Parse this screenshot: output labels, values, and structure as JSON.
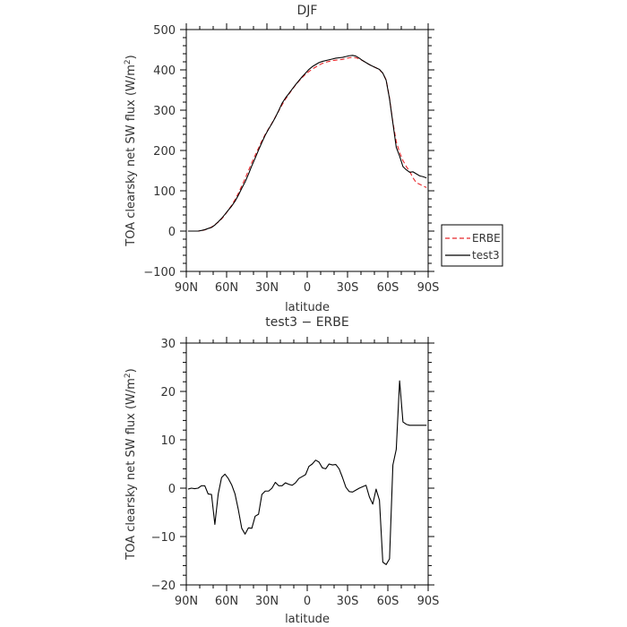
{
  "chart_data": [
    {
      "type": "line",
      "title": "DJF",
      "xlabel": "latitude",
      "ylabel": "TOA clearsky net SW flux (W/m",
      "ylabel_sup": "2",
      "ylabel_tail": ")",
      "xlim": [
        90,
        -90
      ],
      "ylim": [
        -100,
        500
      ],
      "xticks": [
        90,
        60,
        30,
        0,
        -30,
        -60,
        -90
      ],
      "xtick_labels": [
        "90N",
        "60N",
        "30N",
        "0",
        "30S",
        "60S",
        "90S"
      ],
      "yticks": [
        -100,
        0,
        100,
        200,
        300,
        400,
        500
      ],
      "ytick_labels": [
        "−100",
        "0",
        "100",
        "200",
        "300",
        "400",
        "500"
      ],
      "legend_position": "right",
      "series": [
        {
          "name": "ERBE",
          "color": "#e8282b",
          "dash": "dashed",
          "x": [
            88.75,
            86.25,
            83.75,
            81.25,
            78.75,
            76.25,
            73.75,
            71.25,
            68.75,
            66.25,
            63.75,
            61.25,
            58.75,
            56.25,
            53.75,
            51.25,
            48.75,
            46.25,
            43.75,
            41.25,
            38.75,
            36.25,
            33.75,
            31.25,
            28.75,
            26.25,
            23.75,
            21.25,
            18.75,
            16.25,
            13.75,
            11.25,
            8.75,
            6.25,
            3.75,
            1.25,
            -1.25,
            -3.75,
            -6.25,
            -8.75,
            -11.25,
            -13.75,
            -16.25,
            -18.75,
            -21.25,
            -23.75,
            -26.25,
            -28.75,
            -31.25,
            -33.75,
            -36.25,
            -38.75,
            -41.25,
            -43.75,
            -46.25,
            -48.75,
            -51.25,
            -53.75,
            -56.25,
            -58.75,
            -61.25,
            -63.75,
            -66.25,
            -68.75,
            -71.25,
            -73.75,
            -76.25,
            -78.75,
            -81.25,
            -83.75,
            -86.25,
            -88.75
          ],
          "y": [
            0,
            0,
            0,
            0,
            1,
            3,
            6,
            10,
            16,
            22,
            30,
            40,
            52,
            64,
            78,
            94,
            112,
            130,
            150,
            170,
            188,
            206,
            224,
            240,
            254,
            268,
            283,
            298,
            313,
            327,
            339,
            351,
            362,
            372,
            381,
            389,
            396,
            402,
            407,
            412,
            416,
            419,
            421,
            423,
            424,
            425,
            426,
            428,
            430,
            431,
            430,
            427,
            423,
            418,
            413,
            409,
            405,
            400,
            392,
            375,
            330,
            270,
            222,
            195,
            175,
            160,
            148,
            132,
            120,
            116,
            112,
            108
          ]
        },
        {
          "name": "test3",
          "color": "#000000",
          "dash": "solid",
          "x": [
            88.75,
            86.25,
            83.75,
            81.25,
            78.75,
            76.25,
            73.75,
            71.25,
            68.75,
            66.25,
            63.75,
            61.25,
            58.75,
            56.25,
            53.75,
            51.25,
            48.75,
            46.25,
            43.75,
            41.25,
            38.75,
            36.25,
            33.75,
            31.25,
            28.75,
            26.25,
            23.75,
            21.25,
            18.75,
            16.25,
            13.75,
            11.25,
            8.75,
            6.25,
            3.75,
            1.25,
            -1.25,
            -3.75,
            -6.25,
            -8.75,
            -11.25,
            -13.75,
            -16.25,
            -18.75,
            -21.25,
            -23.75,
            -26.25,
            -28.75,
            -31.25,
            -33.75,
            -36.25,
            -38.75,
            -41.25,
            -43.75,
            -46.25,
            -48.75,
            -51.25,
            -53.75,
            -56.25,
            -58.75,
            -61.25,
            -63.75,
            -66.25,
            -68.75,
            -71.25,
            -73.75,
            -76.25,
            -78.75,
            -81.25,
            -83.75,
            -86.25,
            -88.75
          ],
          "y": [
            0,
            0,
            0,
            0,
            1.5,
            3.5,
            6.5,
            9,
            15,
            23,
            31.5,
            41.5,
            52,
            62,
            74,
            89,
            106,
            122,
            141,
            162,
            181,
            201,
            220,
            238,
            253,
            267,
            282,
            299,
            317,
            330,
            341,
            352,
            363,
            373,
            383,
            392,
            401,
            408,
            413,
            418,
            421,
            423,
            425,
            427,
            429,
            430,
            431,
            433,
            435,
            436,
            434,
            429,
            423,
            418,
            413,
            409,
            405,
            401,
            392,
            374,
            328,
            268,
            208,
            186,
            160,
            152,
            146,
            147,
            142,
            137,
            135,
            132
          ]
        }
      ]
    },
    {
      "type": "line",
      "title": "test3 − ERBE",
      "xlabel": "latitude",
      "ylabel": "TOA clearsky net SW flux (W/m",
      "ylabel_sup": "2",
      "ylabel_tail": ")",
      "xlim": [
        90,
        -90
      ],
      "ylim": [
        -20,
        30
      ],
      "xticks": [
        90,
        60,
        30,
        0,
        -30,
        -60,
        -90
      ],
      "xtick_labels": [
        "90N",
        "60N",
        "30N",
        "0",
        "30S",
        "60S",
        "90S"
      ],
      "yticks": [
        -20,
        -10,
        0,
        10,
        20,
        30
      ],
      "ytick_labels": [
        "−20",
        "−10",
        "0",
        "10",
        "20",
        "30"
      ],
      "series": [
        {
          "color": "#000000",
          "dash": "solid",
          "x": [
            88.75,
            86.25,
            83.75,
            81.25,
            78.75,
            76.25,
            73.75,
            71.25,
            68.75,
            66.25,
            63.75,
            61.25,
            58.75,
            56.25,
            53.75,
            51.25,
            48.75,
            46.25,
            43.75,
            41.25,
            38.75,
            36.25,
            33.75,
            31.25,
            28.75,
            26.25,
            23.75,
            21.25,
            18.75,
            16.25,
            13.75,
            11.25,
            8.75,
            6.25,
            3.75,
            1.25,
            -1.25,
            -3.75,
            -6.25,
            -8.75,
            -11.25,
            -13.75,
            -16.25,
            -18.75,
            -21.25,
            -23.75,
            -26.25,
            -28.75,
            -31.25,
            -33.75,
            -36.25,
            -38.75,
            -41.25,
            -43.75,
            -46.25,
            -48.75,
            -51.25,
            -53.75,
            -56.25,
            -58.75,
            -61.25,
            -63.75,
            -66.25,
            -68.75,
            -71.25,
            -73.75,
            -76.25,
            -78.75,
            -81.25,
            -83.75,
            -86.25,
            -88.75
          ],
          "y": [
            -0.2,
            0.0,
            -0.1,
            0.0,
            0.5,
            0.5,
            -1.2,
            -1.3,
            -7.5,
            -1.2,
            2.2,
            2.9,
            2.0,
            0.7,
            -1.2,
            -4.5,
            -8.3,
            -9.5,
            -8.2,
            -8.3,
            -5.8,
            -5.4,
            -1.3,
            -0.6,
            -0.6,
            0.0,
            1.2,
            0.5,
            0.5,
            1.1,
            0.8,
            0.6,
            1.1,
            2.0,
            2.4,
            2.8,
            4.5,
            5.0,
            5.8,
            5.4,
            4.2,
            4.0,
            5.0,
            4.8,
            4.9,
            4.0,
            2.2,
            0.2,
            -0.7,
            -0.8,
            -0.4,
            0.0,
            0.3,
            0.6,
            -1.8,
            -3.3,
            -0.2,
            -2.5,
            -15.3,
            -15.8,
            -14.6,
            4.8,
            8.0,
            22.2,
            13.7,
            13.2,
            13.0,
            13.0,
            13.0,
            13.0,
            13.0,
            13.0
          ]
        }
      ]
    }
  ]
}
